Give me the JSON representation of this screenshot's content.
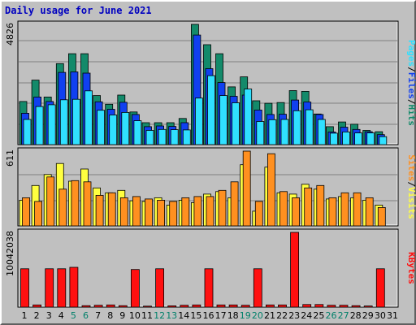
{
  "title": "Daily usage for June 2021",
  "colors": {
    "background": "#c0c0c0",
    "panel": "#c0c0c0",
    "title": "#0000c0",
    "hits": "#138a6a",
    "files": "#1040f0",
    "pages": "#30e0ff",
    "visits": "#ffff40",
    "sites": "#ff9020",
    "kbytes": "#ff1010",
    "weekend": "#00806a",
    "weekday": "#000000"
  },
  "chart_data": [
    {
      "type": "bar",
      "panel": "hits-files-pages",
      "ymax_label": "4826",
      "ylim": [
        0,
        4826
      ],
      "legend": [
        "Pages",
        "/",
        "Files",
        "/",
        "Hits"
      ],
      "categories": [
        "1",
        "2",
        "3",
        "4",
        "5",
        "6",
        "7",
        "8",
        "9",
        "10",
        "11",
        "12",
        "13",
        "14",
        "15",
        "16",
        "17",
        "18",
        "19",
        "20",
        "21",
        "22",
        "23",
        "24",
        "25",
        "26",
        "27",
        "28",
        "29",
        "30",
        "31"
      ],
      "series": [
        {
          "name": "Hits",
          "values": [
            1730,
            2590,
            1910,
            3250,
            3650,
            3650,
            1970,
            1620,
            1990,
            1310,
            880,
            880,
            880,
            1050,
            4826,
            4010,
            3650,
            2320,
            2720,
            1760,
            1660,
            1690,
            2170,
            2140,
            1230,
            720,
            910,
            820,
            570,
            520,
            0
          ]
        },
        {
          "name": "Files",
          "values": [
            1260,
            1910,
            1730,
            2900,
            2920,
            2870,
            1720,
            1420,
            1700,
            1210,
            720,
            750,
            730,
            880,
            4400,
            3050,
            2490,
            1940,
            1990,
            1390,
            1210,
            1220,
            1790,
            1710,
            1210,
            510,
            700,
            610,
            520,
            400,
            0
          ]
        },
        {
          "name": "Pages",
          "values": [
            1010,
            1530,
            1600,
            1800,
            1820,
            2160,
            1380,
            1190,
            1290,
            960,
            570,
            610,
            600,
            590,
            1870,
            2770,
            1970,
            1680,
            2230,
            930,
            1000,
            1010,
            1360,
            1400,
            1010,
            460,
            510,
            470,
            470,
            320,
            0
          ]
        }
      ]
    },
    {
      "type": "bar",
      "panel": "visits-sites",
      "ymax_label": "611",
      "ylim": [
        0,
        611
      ],
      "legend": [
        "Sites",
        "/",
        "Visits"
      ],
      "categories": [
        "1",
        "2",
        "3",
        "4",
        "5",
        "6",
        "7",
        "8",
        "9",
        "10",
        "11",
        "12",
        "13",
        "14",
        "15",
        "16",
        "17",
        "18",
        "19",
        "20",
        "21",
        "22",
        "23",
        "24",
        "25",
        "26",
        "27",
        "28",
        "29",
        "30",
        "31"
      ],
      "series": [
        {
          "name": "Visits",
          "values": [
            210,
            330,
            420,
            510,
            365,
            465,
            310,
            270,
            290,
            205,
            200,
            230,
            170,
            210,
            190,
            260,
            280,
            230,
            500,
            120,
            480,
            270,
            260,
            340,
            300,
            220,
            240,
            230,
            210,
            170,
            0
          ]
        },
        {
          "name": "Sites",
          "values": [
            230,
            200,
            400,
            300,
            370,
            360,
            250,
            270,
            230,
            240,
            220,
            210,
            200,
            230,
            240,
            240,
            290,
            360,
            611,
            200,
            590,
            280,
            230,
            310,
            330,
            230,
            270,
            270,
            230,
            150,
            0
          ]
        }
      ]
    },
    {
      "type": "bar",
      "panel": "kbytes",
      "ymax_label": "10042038",
      "ylim": [
        0,
        10042038
      ],
      "legend": [
        "KBytes"
      ],
      "categories": [
        "1",
        "2",
        "3",
        "4",
        "5",
        "6",
        "7",
        "8",
        "9",
        "10",
        "11",
        "12",
        "13",
        "14",
        "15",
        "16",
        "17",
        "18",
        "19",
        "20",
        "21",
        "22",
        "23",
        "24",
        "25",
        "26",
        "27",
        "28",
        "29",
        "30",
        "31"
      ],
      "series": [
        {
          "name": "KBytes",
          "values": [
            5150000,
            300000,
            5150000,
            5150000,
            5350000,
            200000,
            250000,
            300000,
            200000,
            5050000,
            130000,
            5150000,
            170000,
            250000,
            300000,
            5150000,
            300000,
            300000,
            250000,
            5150000,
            300000,
            300000,
            10042038,
            350000,
            350000,
            250000,
            250000,
            200000,
            150000,
            5150000,
            0
          ]
        }
      ]
    }
  ],
  "weekend_days": [
    5,
    6,
    12,
    13,
    19,
    20,
    26,
    27
  ]
}
